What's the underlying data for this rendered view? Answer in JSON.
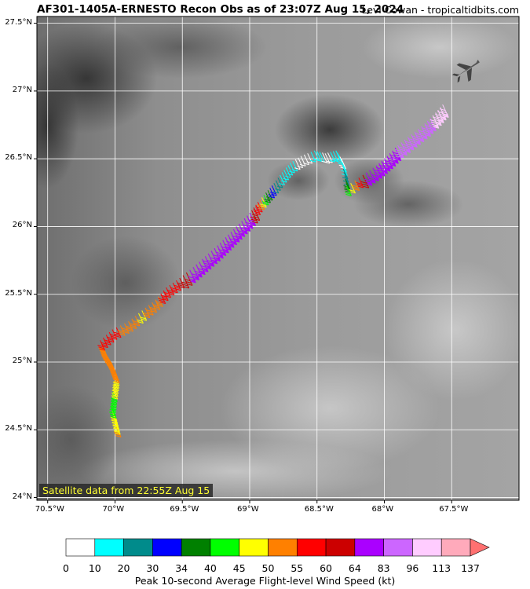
{
  "header": {
    "title": "AF301-1405A-ERNESTO Recon Obs as of 23:07Z Aug 15, 2024",
    "credit": "Levi Cowan - tropicaltidbits.com"
  },
  "map": {
    "lat_range": [
      23.98,
      27.55
    ],
    "lon_range": [
      -70.58,
      -67.0
    ],
    "lat_ticks": [
      "27.5°N",
      "27°N",
      "26.5°N",
      "26°N",
      "25.5°N",
      "25°N",
      "24.5°N",
      "24°N"
    ],
    "lon_ticks": [
      "70.5°W",
      "70°W",
      "69.5°W",
      "69°W",
      "68.5°W",
      "68°W",
      "67.5°W"
    ],
    "satellite_label": "Satellite data from 22:55Z Aug 15",
    "aircraft_icon": "airplane-icon"
  },
  "flight_track": [
    {
      "lat": 24.52,
      "lon": -69.99,
      "kt": 50
    },
    {
      "lat": 24.6,
      "lon": -70.01,
      "kt": 48
    },
    {
      "lat": 24.68,
      "lon": -70.03,
      "kt": 42
    },
    {
      "lat": 24.76,
      "lon": -70.02,
      "kt": 44
    },
    {
      "lat": 24.84,
      "lon": -70.01,
      "kt": 47
    },
    {
      "lat": 24.92,
      "lon": -70.0,
      "kt": 50
    },
    {
      "lat": 25.0,
      "lon": -70.03,
      "kt": 52
    },
    {
      "lat": 25.08,
      "lon": -70.08,
      "kt": 54
    },
    {
      "lat": 25.16,
      "lon": -70.11,
      "kt": 55
    },
    {
      "lat": 25.24,
      "lon": -70.02,
      "kt": 57
    },
    {
      "lat": 25.3,
      "lon": -69.9,
      "kt": 52
    },
    {
      "lat": 25.38,
      "lon": -69.8,
      "kt": 49
    },
    {
      "lat": 25.46,
      "lon": -69.7,
      "kt": 53
    },
    {
      "lat": 25.55,
      "lon": -69.62,
      "kt": 58
    },
    {
      "lat": 25.62,
      "lon": -69.52,
      "kt": 60
    },
    {
      "lat": 25.7,
      "lon": -69.42,
      "kt": 66
    },
    {
      "lat": 25.78,
      "lon": -69.33,
      "kt": 70
    },
    {
      "lat": 25.86,
      "lon": -69.24,
      "kt": 68
    },
    {
      "lat": 25.94,
      "lon": -69.16,
      "kt": 66
    },
    {
      "lat": 26.02,
      "lon": -69.08,
      "kt": 65
    },
    {
      "lat": 26.1,
      "lon": -69.0,
      "kt": 64
    },
    {
      "lat": 26.18,
      "lon": -68.94,
      "kt": 58
    },
    {
      "lat": 26.25,
      "lon": -68.88,
      "kt": 36
    },
    {
      "lat": 26.32,
      "lon": -68.82,
      "kt": 28
    },
    {
      "lat": 26.4,
      "lon": -68.76,
      "kt": 15
    },
    {
      "lat": 26.47,
      "lon": -68.7,
      "kt": 12
    },
    {
      "lat": 26.52,
      "lon": -68.62,
      "kt": 6
    },
    {
      "lat": 26.56,
      "lon": -68.52,
      "kt": 12
    },
    {
      "lat": 26.54,
      "lon": -68.44,
      "kt": 8
    },
    {
      "lat": 26.56,
      "lon": -68.36,
      "kt": 14
    },
    {
      "lat": 26.5,
      "lon": -68.32,
      "kt": 6
    },
    {
      "lat": 26.4,
      "lon": -68.3,
      "kt": 25
    },
    {
      "lat": 26.3,
      "lon": -68.28,
      "kt": 44
    },
    {
      "lat": 26.38,
      "lon": -68.16,
      "kt": 62
    },
    {
      "lat": 26.45,
      "lon": -68.06,
      "kt": 70
    },
    {
      "lat": 26.52,
      "lon": -67.98,
      "kt": 75
    },
    {
      "lat": 26.6,
      "lon": -67.9,
      "kt": 84
    },
    {
      "lat": 26.68,
      "lon": -67.8,
      "kt": 86
    },
    {
      "lat": 26.76,
      "lon": -67.7,
      "kt": 90
    },
    {
      "lat": 26.84,
      "lon": -67.62,
      "kt": 98
    },
    {
      "lat": 26.92,
      "lon": -67.55,
      "kt": 100
    }
  ],
  "colorbar": {
    "bounds": [
      "0",
      "10",
      "20",
      "30",
      "34",
      "40",
      "45",
      "50",
      "55",
      "60",
      "64",
      "83",
      "96",
      "113",
      "137"
    ],
    "colors": [
      "#ffffff",
      "#00ffff",
      "#008b8b",
      "#0000ff",
      "#008000",
      "#00ff00",
      "#ffff00",
      "#ff8000",
      "#ff0000",
      "#cc0000",
      "#aa00ff",
      "#cc66ff",
      "#ffccff",
      "#ffaabb"
    ],
    "extend_color": "#ff7070",
    "label": "Peak 10-second Average Flight-level Wind Speed (kt)"
  }
}
